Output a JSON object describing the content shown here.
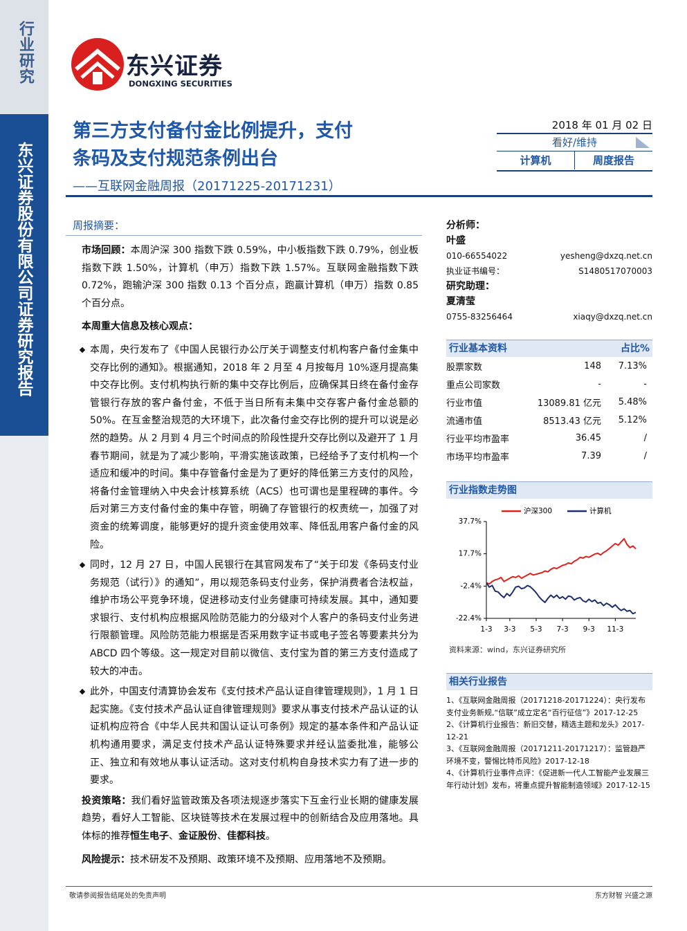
{
  "sidebar": {
    "category": "行业研究",
    "publisher": "东兴证券股份有限公司证券研究报告"
  },
  "logo": {
    "name": "东兴证券",
    "name_en": "DONGXING SECURITIES"
  },
  "header": {
    "title": [
      "第三方支付备付金比例提升，支付",
      "条码及支付规范条例出台"
    ],
    "subtitle": "——互联网金融周报（20171225-20171231）",
    "date": "2018 年 01 月 02 日",
    "rating": "看好/维持",
    "sector": "计算机",
    "report_type": "周度报告"
  },
  "summary": {
    "heading": "周报摘要：",
    "market_review": {
      "label": "市场回顾：",
      "text": "本周沪深 300 指数下跌 0.59%，中小板指数下跌 0.79%，创业板指数下跌 1.50%，计算机（申万）指数下跌 1.57%。互联网金融指数下跌 0.72%，跑输沪深 300 指数 0.13 个百分点，跑赢计算机（申万）指数 0.85 个百分点。"
    },
    "highlights_heading": "本周重大信息及核心观点：",
    "bullets": [
      "本周，央行发布了《中国人民银行办公厅关于调整支付机构客户备付金集中交存比例的通知》。根据通知，2018 年 2 月至 4 月按每月 10%逐月提高集中交存比例。支付机构执行新的集中交存比例后，应确保其日终在备付金存管银行存放的客户备付金，不低于当日所有未集中交存客户备付金总额的 50%。在互金整治规范的大环境下，此次备付金交存比例的提升可以说是必然的趋势。从 2 月到 4 月三个时间点的阶段性提升交存比例以及避开了 1 月春节期间，就是为了减少影响，平滑实施该政策，已经给予了支付机构一个适应和缓冲的时间。集中存管备付金是为了更好的降低第三方支付的风险，将备付金管理纳入中央会计核算系统（ACS）也可谓也是里程碑的事件。今后对第三方支付备付金的集中存管，明确了存管银行的权责统一，加强了对资金的统筹调度，能够更好的提升资金使用效率、降低乱用客户备付金的风险。",
      "同时，12 月 27 日，中国人民银行在其官网发布了“关于印发《条码支付业务规范（试行）》的通知”，用以规范条码支付业务，保护消费者合法权益，维护市场公平竞争环境，促进移动支付业务健康可持续发展。其中，通知要求银行、支付机构应根据风险防范能力的分级对个人客户的条码支付业务进行限额管理。风险防范能力根据是否采用数字证书或电子签名等要素共分为 ABCD 四个等级。这一规定对目前以微信、支付宝为首的第三方支付造成了较大的冲击。",
      "此外，中国支付清算协会发布《支付技术产品认证自律管理规则》，1 月 1 日起实施。《支付技术产品认证自律管理规则》要求从事支付技术产品认证的认证机构应符合《中华人民共和国认证认可条例》规定的基本条件和产品认证机构通用要求，满足支付技术产品认证特殊要求并经认监委批准，能够公正、独立和有效地从事认证活动。这对支付机构自身技术实力有了进一步的要求。"
    ],
    "strategy": {
      "label": "投资策略：",
      "text": "我们看好监管政策及各项法规逐步落实下互金行业长期的健康发展趋势，看好人工智能、区块链等技术在发展过程中的创新结合及应用落地。具体标的推荐",
      "picks": [
        "恒生电子",
        "金证股份",
        "佳都科技"
      ],
      "separator": "、",
      "end": "。"
    },
    "risk": {
      "label": "风险提示：",
      "text": "技术研发不及预期、政策环境不及预期、应用落地不及预期。"
    }
  },
  "analysts": [
    {
      "role": "分析师：",
      "name": "叶盛",
      "phone": "010-66554022",
      "email": "yesheng@dxzq.net.cn",
      "license_label": "执业证书编号：",
      "license": "S1480517070003"
    },
    {
      "role": "研究助理：",
      "name": "夏清莹",
      "phone": "0755-83256464",
      "email": "xiaqy@dxzq.net.cn"
    }
  ],
  "industry_data": {
    "heading": "行业基本资料",
    "share_heading": "占比%",
    "rows": [
      [
        "股票家数",
        "148",
        "7.13%"
      ],
      [
        "重点公司家数",
        "-",
        "-"
      ],
      [
        "行业市值",
        "13089.81 亿元",
        "5.48%"
      ],
      [
        "流通市值",
        "8513.43 亿元",
        "5.12%"
      ],
      [
        "行业平均市盈率",
        "36.45",
        "/"
      ],
      [
        "市场平均市盈率",
        "7.39",
        "/"
      ]
    ]
  },
  "index_chart": {
    "heading": "行业指数走势图",
    "chart_data": {
      "type": "line",
      "categories": [
        "1-3",
        null,
        null,
        null,
        null,
        null,
        null,
        null,
        "3-3",
        null,
        null,
        null,
        null,
        null,
        null,
        null,
        null,
        "5-3",
        null,
        null,
        null,
        null,
        null,
        null,
        null,
        null,
        "7-3",
        null,
        null,
        null,
        null,
        null,
        null,
        null,
        null,
        "9-3",
        null,
        null,
        null,
        null,
        null,
        null,
        null,
        null,
        "11-3",
        null,
        null,
        null,
        null,
        null,
        null,
        null
      ],
      "series": [
        {
          "name": "沪深300",
          "color": "#e0201b",
          "values": [
            -0.3,
            -1.0,
            0.5,
            1.5,
            2.0,
            3.0,
            0.5,
            1.5,
            2.5,
            3.5,
            3.0,
            4.0,
            2.5,
            3.5,
            4.5,
            5.5,
            4.5,
            5.0,
            5.5,
            6.0,
            7.0,
            6.5,
            8.0,
            9.0,
            8.5,
            9.5,
            10.5,
            11.0,
            12.0,
            11.5,
            13.0,
            14.0,
            15.5,
            15.0,
            16.0,
            15.5,
            16.5,
            17.5,
            18.0,
            17.0,
            18.5,
            19.5,
            21.0,
            22.5,
            24.0,
            23.0,
            25.0,
            27.0,
            23.5,
            21.5,
            22.5,
            20.8
          ]
        },
        {
          "name": "计算机",
          "color": "#1b2f6e",
          "values": [
            -0.3,
            -3.0,
            -2.0,
            -5.5,
            -6.0,
            -8.0,
            -9.5,
            -7.0,
            -8.5,
            -6.0,
            -3.0,
            -2.5,
            -4.0,
            -3.5,
            -2.0,
            -2.8,
            -4.5,
            -6.5,
            -9.0,
            -11.0,
            -12.5,
            -10.0,
            -8.0,
            -9.5,
            -8.0,
            -10.0,
            -9.0,
            -10.5,
            -8.5,
            -9.0,
            -11.0,
            -10.0,
            -9.5,
            -11.5,
            -12.3,
            -10.5,
            -12.0,
            -11.0,
            -13.0,
            -12.5,
            -14.5,
            -13.0,
            -14.0,
            -15.5,
            -14.0,
            -16.0,
            -17.5,
            -16.5,
            -18.0,
            -17.5,
            -19.5,
            -18.7
          ]
        }
      ],
      "ylim": [
        -22.4,
        37.7
      ],
      "yticks": [
        {
          "value": 37.7,
          "label": "37.7%"
        },
        {
          "value": 17.7,
          "label": "17.7%"
        },
        {
          "value": -2.4,
          "label": "-2.4%"
        },
        {
          "value": -22.4,
          "label": "-22.4%"
        }
      ]
    },
    "source": "资料来源：wind，东兴证券研究所"
  },
  "related_reports": {
    "heading": "相关行业报告",
    "items": [
      "1、《互联网金融周报（20171218-20171224）：央行发布支付业务新规,“信联”成立定名“百行征信”》2017-12-25",
      "2、《计算机行业报告：新旧交替，精选主题和龙头》2017-12-21",
      "3、《互联网金融周报（20171211-20171217）：监管趋严环境不变，警惕比特币风险》2017-12-18",
      "4、《计算机行业事件点评：《促进新一代人工智能产业发展三年行动计划》发布，将重点提升智能制造领域》2017-12-15"
    ]
  },
  "footer": {
    "disclaimer": "敬请参阅报告结尾处的免责声明",
    "slogan": "东方财智 兴盛之源"
  }
}
